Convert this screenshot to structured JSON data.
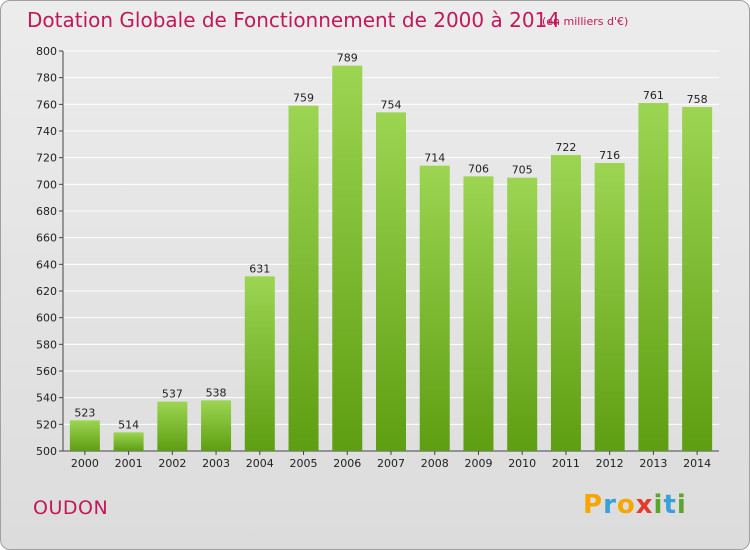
{
  "title": "Dotation Globale de Fonctionnement de 2000 à 2014",
  "subtitle": "(en milliers d'€)",
  "commune": "OUDON",
  "logo": {
    "text": "Proxiti",
    "letters": [
      "P",
      "r",
      "o",
      "x",
      "i",
      "t",
      "i"
    ],
    "colors": [
      "#f7a600",
      "#3aa0d8",
      "#f7a600",
      "#e23b2e",
      "#5aa52c",
      "#3aa0d8",
      "#5aa52c"
    ]
  },
  "colors": {
    "title": "#c2185b",
    "bar_top": "#9cd552",
    "bar_bottom": "#5e9e12",
    "grid": "#ffffff"
  },
  "chart_data": {
    "type": "bar",
    "title": "Dotation Globale de Fonctionnement de 2000 à 2014",
    "subtitle": "(en milliers d'€)",
    "categories": [
      "2000",
      "2001",
      "2002",
      "2003",
      "2004",
      "2005",
      "2006",
      "2007",
      "2008",
      "2009",
      "2010",
      "2011",
      "2012",
      "2013",
      "2014"
    ],
    "values": [
      523,
      514,
      537,
      538,
      631,
      759,
      789,
      754,
      714,
      706,
      705,
      722,
      716,
      761,
      758
    ],
    "ylim": [
      500,
      800
    ],
    "yticks": [
      500,
      520,
      540,
      560,
      580,
      600,
      620,
      640,
      660,
      680,
      700,
      720,
      740,
      760,
      780,
      800
    ],
    "grid": true,
    "legend": "none"
  }
}
